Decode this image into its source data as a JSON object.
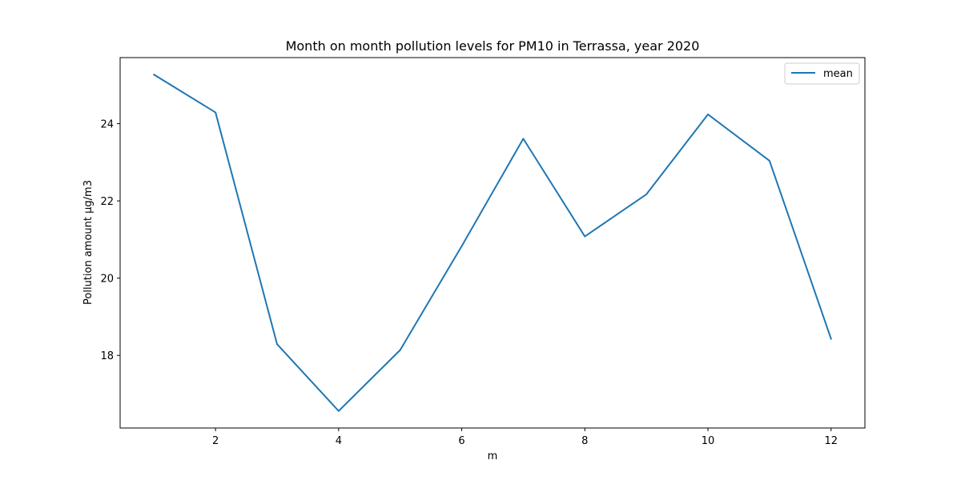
{
  "chart_data": {
    "type": "line",
    "title": "Month on month pollution levels for PM10 in Terrassa, year 2020",
    "xlabel": "m",
    "ylabel": "Pollution amount µg/m3",
    "x": [
      1,
      2,
      3,
      4,
      5,
      6,
      7,
      8,
      9,
      10,
      11,
      12
    ],
    "series": [
      {
        "name": "mean",
        "color": "#1f77b4",
        "values": [
          25.27,
          24.29,
          18.29,
          16.56,
          18.14,
          20.83,
          23.61,
          21.08,
          22.17,
          24.24,
          23.04,
          18.43
        ]
      }
    ],
    "xlim": [
      0.45,
      12.55
    ],
    "ylim": [
      16.12,
      25.71
    ],
    "xticks": [
      2,
      4,
      6,
      8,
      10,
      12
    ],
    "yticks": [
      18,
      20,
      22,
      24
    ],
    "grid": false,
    "legend": "upper right"
  }
}
